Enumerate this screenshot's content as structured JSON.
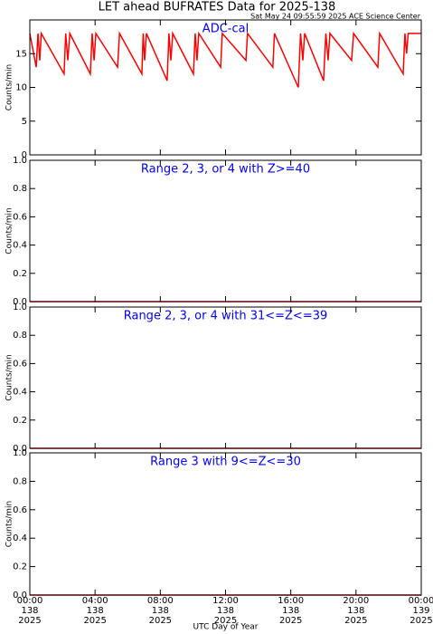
{
  "header": {
    "title": "LET ahead BUFRATES Data for 2025-138",
    "timestamp": "Sat May 24 09:55:59 2025 ACE Science Center"
  },
  "chart_data": [
    {
      "type": "line",
      "title": "ADC-cal",
      "ylabel": "Counts/min",
      "xlim": [
        0,
        24
      ],
      "ylim": [
        0,
        20
      ],
      "yticks": [
        0,
        5,
        10,
        15
      ],
      "series": [
        {
          "color": "#ff0000",
          "x": [
            0,
            0.39,
            0.5,
            0.61,
            0.7,
            2.1,
            2.2,
            2.33,
            2.45,
            3.71,
            3.82,
            3.94,
            4.05,
            5.38,
            5.5,
            6.87,
            6.95,
            7.04,
            7.15,
            8.42,
            8.53,
            8.65,
            8.76,
            10.03,
            10.14,
            10.25,
            10.36,
            11.7,
            11.8,
            13.25,
            13.35,
            14.9,
            15.0,
            16.46,
            16.6,
            16.74,
            16.85,
            18.01,
            18.15,
            18.29,
            18.4,
            19.73,
            19.85,
            21.34,
            21.45,
            22.89,
            23.0,
            23.1,
            23.2,
            24
          ],
          "values": [
            18,
            13,
            18,
            14,
            18,
            12,
            18,
            14,
            18,
            12,
            18,
            14,
            18,
            13,
            18,
            12,
            18,
            14,
            18,
            11,
            18,
            14,
            18,
            12,
            18,
            14,
            18,
            13,
            18,
            14,
            18,
            13,
            18,
            10,
            18,
            14,
            18,
            11,
            18,
            14,
            18,
            14,
            18,
            13,
            18,
            12,
            18,
            15,
            18,
            18
          ]
        }
      ]
    },
    {
      "type": "line",
      "title": "Range 2, 3, or 4 with Z>=40",
      "ylabel": "Counts/min",
      "xlim": [
        0,
        24
      ],
      "ylim": [
        0,
        1
      ],
      "yticks": [
        {
          "value": 0,
          "label": "0.0"
        },
        0.2,
        0.4,
        0.6,
        0.8,
        {
          "value": 1,
          "label": "1.0"
        }
      ],
      "series": [
        {
          "color": "#ff0000",
          "x": [
            0,
            24
          ],
          "values": [
            0,
            0
          ]
        }
      ]
    },
    {
      "type": "line",
      "title": "Range 2, 3, or 4 with 31<=Z<=39",
      "ylabel": "Counts/min",
      "xlim": [
        0,
        24
      ],
      "ylim": [
        0,
        1
      ],
      "yticks": [
        {
          "value": 0,
          "label": "0.0"
        },
        0.2,
        0.4,
        0.6,
        0.8,
        {
          "value": 1,
          "label": "1.0"
        }
      ],
      "series": [
        {
          "color": "#ff0000",
          "x": [
            0,
            24
          ],
          "values": [
            0,
            0
          ]
        }
      ]
    },
    {
      "type": "line",
      "title": "Range 3 with 9<=Z<=30",
      "ylabel": "Counts/min",
      "xlabel": "UTC Day of Year",
      "xlim": [
        0,
        24
      ],
      "ylim": [
        0,
        1
      ],
      "yticks": [
        {
          "value": 0,
          "label": "0.0"
        },
        0.2,
        0.4,
        0.6,
        0.8,
        {
          "value": 1,
          "label": "1.0"
        }
      ],
      "xticks": [
        {
          "value": 0,
          "label": "00:00",
          "day": "138",
          "year": "2025"
        },
        {
          "value": 4,
          "label": "04:00",
          "day": "138",
          "year": "2025"
        },
        {
          "value": 8,
          "label": "08:00",
          "day": "138",
          "year": "2025"
        },
        {
          "value": 12,
          "label": "12:00",
          "day": "138",
          "year": "2025"
        },
        {
          "value": 16,
          "label": "16:00",
          "day": "138",
          "year": "2025"
        },
        {
          "value": 20,
          "label": "20:00",
          "day": "138",
          "year": "2025"
        },
        {
          "value": 24,
          "label": "00:00",
          "day": "139",
          "year": "2025"
        }
      ],
      "series": [
        {
          "color": "#ff0000",
          "x": [
            0,
            24
          ],
          "values": [
            0,
            0
          ]
        }
      ]
    }
  ]
}
